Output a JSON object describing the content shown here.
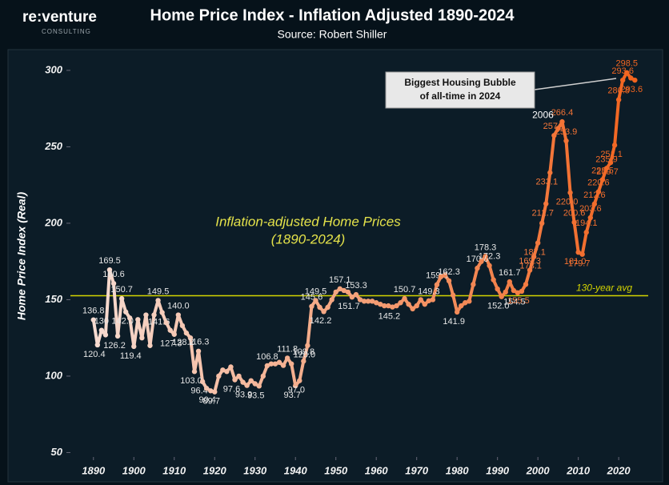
{
  "chart_data": {
    "type": "line",
    "title": "Home Price Index - Inflation Adjusted 1890-2024",
    "subtitle": "Source: Robert Shiller",
    "logo": {
      "name": "re:venture",
      "tagline": "CONSULTING"
    },
    "y_label": "Home Price Index (Real)",
    "inner_title": [
      "Inflation-adjusted Home Prices",
      "(1890-2024)"
    ],
    "callout": [
      "Biggest Housing Bubble",
      "of all-time in 2024"
    ],
    "peak_annotation": "2006",
    "average": {
      "value": 152.6,
      "label": "130-year avg",
      "color": "#d4d400"
    },
    "xlim": [
      1884.3,
      2027.3
    ],
    "ylim": [
      45,
      312
    ],
    "xticks": [
      1890,
      1900,
      1910,
      1920,
      1930,
      1940,
      1950,
      1960,
      1970,
      1980,
      1990,
      2000,
      2010,
      2020
    ],
    "yticks": [
      50,
      100,
      150,
      200,
      250,
      300
    ],
    "x": [
      1890,
      1891,
      1892,
      1893,
      1894,
      1895,
      1896,
      1897,
      1898,
      1899,
      1900,
      1901,
      1902,
      1903,
      1904,
      1905,
      1906,
      1907,
      1908,
      1909,
      1910,
      1911,
      1912,
      1913,
      1914,
      1915,
      1916,
      1917,
      1918,
      1919,
      1920,
      1921,
      1922,
      1923,
      1924,
      1925,
      1926,
      1927,
      1928,
      1929,
      1930,
      1931,
      1932,
      1933,
      1934,
      1935,
      1936,
      1937,
      1938,
      1939,
      1940,
      1941,
      1942,
      1943,
      1944,
      1945,
      1946,
      1947,
      1948,
      1949,
      1950,
      1951,
      1952,
      1953,
      1954,
      1955,
      1956,
      1957,
      1958,
      1959,
      1960,
      1961,
      1962,
      1963,
      1964,
      1965,
      1966,
      1967,
      1968,
      1969,
      1970,
      1971,
      1972,
      1973,
      1974,
      1975,
      1976,
      1977,
      1978,
      1979,
      1980,
      1981,
      1982,
      1983,
      1984,
      1985,
      1986,
      1987,
      1988,
      1989,
      1990,
      1991,
      1992,
      1993,
      1994,
      1995,
      1996,
      1997,
      1998,
      1999,
      2000,
      2001,
      2002,
      2003,
      2004,
      2005,
      2006,
      2007,
      2008,
      2009,
      2010,
      2011,
      2012,
      2013,
      2014,
      2015,
      2016,
      2017,
      2018,
      2019,
      2020,
      2021,
      2022,
      2023,
      2024
    ],
    "series": [
      {
        "colors": [
          "#f6e0d8",
          "#f2611a"
        ],
        "values": [
          136.8,
          120.4,
          130,
          127,
          169.5,
          160.6,
          126.2,
          150.7,
          142,
          138,
          119.4,
          137,
          125,
          140,
          120,
          140,
          149.5,
          141.6,
          135,
          130,
          127.3,
          140,
          133,
          128.2,
          125,
          103,
          116.3,
          96.4,
          92,
          90.4,
          89.7,
          100,
          104,
          103,
          106,
          97.6,
          100,
          96,
          93.9,
          97,
          95,
          93.5,
          100,
          106.8,
          108,
          108,
          109,
          107,
          111.8,
          108,
          93.7,
          97,
          109.8,
          120,
          145.6,
          149.5,
          145,
          142.2,
          145,
          150,
          155,
          157.1,
          156,
          155,
          151.7,
          153.3,
          150,
          149,
          149,
          149,
          148,
          147,
          146,
          146,
          145.2,
          146,
          148,
          150.7,
          147,
          144,
          146,
          150,
          147,
          149.3,
          150,
          159.8,
          165,
          166,
          162.3,
          153,
          141.9,
          146,
          148,
          149,
          160,
          170.6,
          175,
          178.3,
          172.3,
          163,
          157,
          152,
          155,
          161.7,
          156,
          154.5,
          155.5,
          160,
          169.3,
          178.1,
          187.1,
          200,
          212.7,
          233.1,
          257.4,
          262,
          266.4,
          253.9,
          220,
          200.6,
          181,
          179.7,
          194.1,
          203.6,
          212.6,
          220.6,
          228.5,
          235.9,
          239.7,
          251.1,
          280.8,
          293.6,
          298.5,
          295,
          293.6
        ],
        "value_labels": [
          "136.8",
          "120.4",
          "130",
          null,
          "169.5",
          "160.6",
          "126.2",
          "150.7",
          "142.0",
          null,
          "119.4",
          null,
          null,
          null,
          null,
          null,
          "149.5",
          "141.6",
          null,
          null,
          "127.3",
          "140.0",
          null,
          "128.2",
          null,
          "103.0",
          "116.3",
          "96.4",
          null,
          "90.4",
          "89.7",
          null,
          null,
          null,
          null,
          "97.6",
          null,
          null,
          "93.9",
          null,
          null,
          "93.5",
          null,
          "106.8",
          null,
          null,
          null,
          null,
          "111.8",
          null,
          "93.7",
          "97.0",
          "109.8",
          "120.0",
          "145.6",
          "149.5",
          null,
          "142.2",
          null,
          null,
          null,
          "157.1",
          null,
          null,
          "151.7",
          "153.3",
          null,
          null,
          null,
          null,
          null,
          null,
          null,
          null,
          "145.2",
          null,
          null,
          "150.7",
          null,
          null,
          null,
          null,
          null,
          "149.3",
          null,
          "159.8",
          null,
          null,
          "162.3",
          null,
          "141.9",
          null,
          null,
          null,
          null,
          "170.6",
          null,
          "178.3",
          "172.3",
          null,
          null,
          "152.0",
          null,
          "161.7",
          null,
          "154.5",
          "155.5",
          null,
          "169.3",
          "178.1",
          "187.1",
          null,
          "212.7",
          "233.1",
          "257.4",
          null,
          "266.4",
          "253.9",
          "220.0",
          "200.6",
          "181.0",
          "179.7",
          "194.1",
          "203.6",
          "212.6",
          "220.6",
          "228.5",
          "235.9",
          "239.7",
          "251.1",
          "280.8",
          "293.6",
          "298.5",
          null,
          "293.6"
        ]
      }
    ]
  }
}
